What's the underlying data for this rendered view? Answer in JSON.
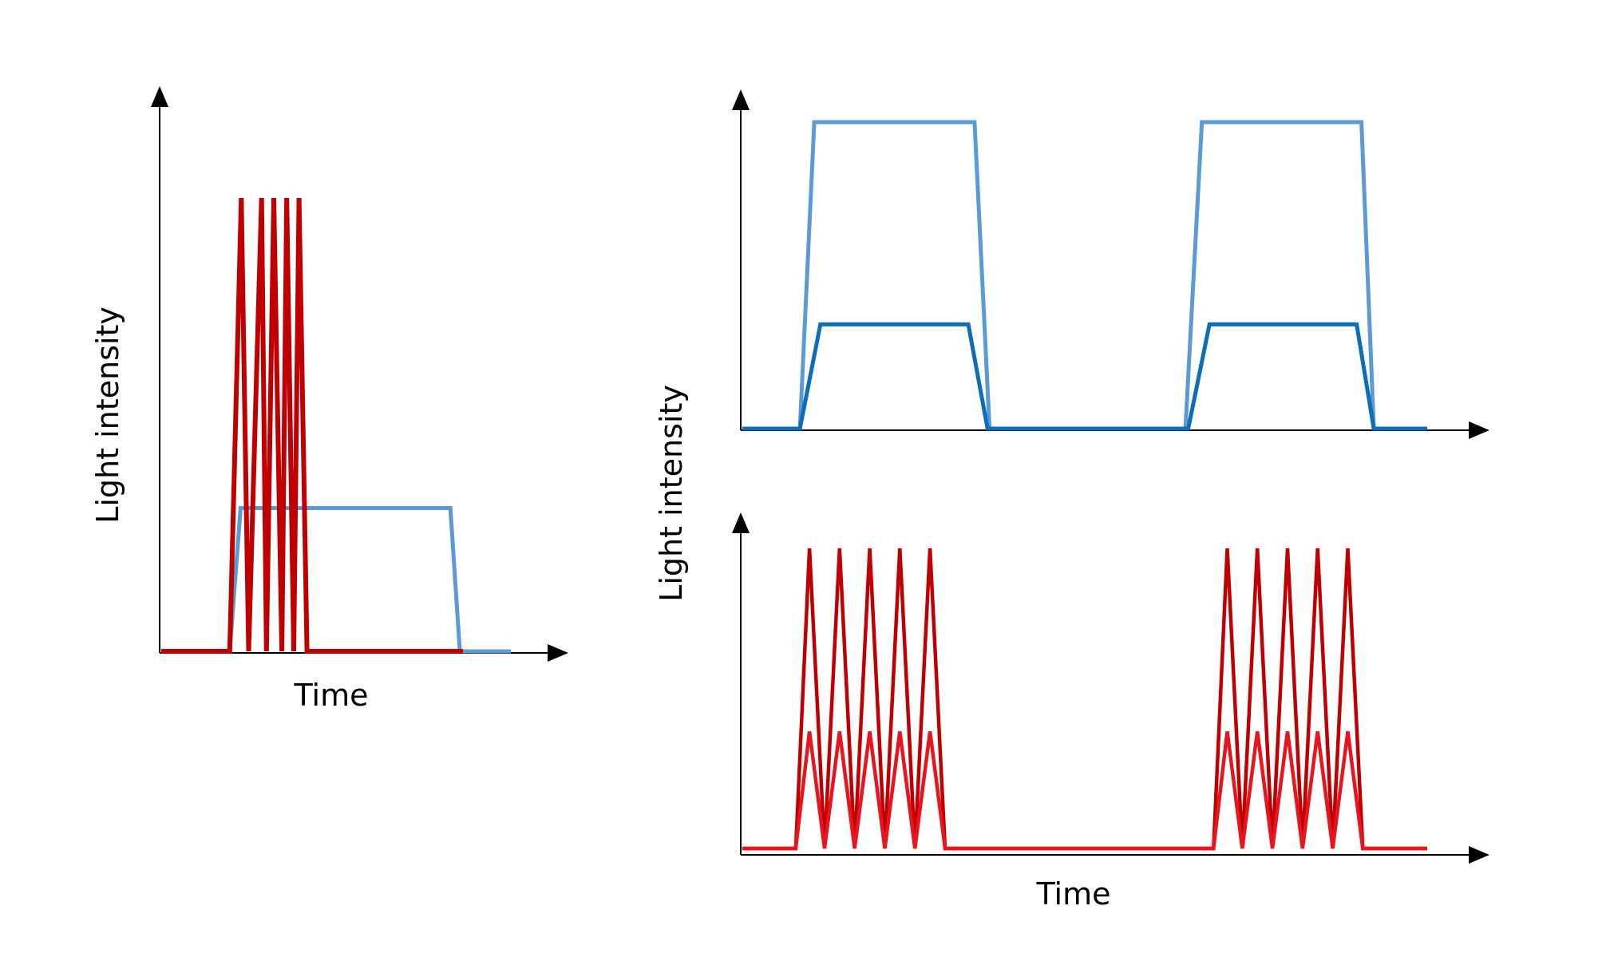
{
  "colors": {
    "axis": "#000000",
    "red_dark": "#c00000",
    "red_light": "#e8141e",
    "blue_light": "#5b9bd5",
    "blue_dark": "#0c6eb8"
  },
  "chart_data": [
    {
      "type": "line",
      "title": "",
      "xlabel": "Time",
      "ylabel": "Light intensity",
      "grid": false,
      "ylim": [
        0,
        1
      ],
      "series": [
        {
          "color": "#5b9bd5",
          "x": [
            0,
            0.196,
            0.227,
            0.827,
            0.854,
            1.0
          ],
          "y": [
            0.0,
            0.0,
            0.316,
            0.316,
            0.0,
            0.0
          ]
        },
        {
          "color": "#c00000",
          "x": [
            0,
            0.196,
            0.229,
            0.25,
            0.287,
            0.301,
            0.322,
            0.345,
            0.359,
            0.379,
            0.394,
            0.417,
            0.863
          ],
          "y": [
            0.0,
            0.0,
            1.0,
            0.0,
            1.0,
            0.0,
            1.0,
            0.0,
            1.0,
            0.0,
            1.0,
            0.0,
            0.0
          ]
        }
      ]
    },
    {
      "type": "line",
      "title": "",
      "xlabel": "",
      "ylabel": "Light intensity",
      "grid": false,
      "ylim": [
        0,
        1
      ],
      "series": [
        {
          "color": "#5b9bd5",
          "x": [
            0,
            0.084,
            0.105,
            0.339,
            0.361,
            0.647,
            0.671,
            0.904,
            0.922,
            1.0
          ],
          "y": [
            0.0,
            0.0,
            1.0,
            1.0,
            0.0,
            0.0,
            1.0,
            1.0,
            0.0,
            0.0
          ]
        },
        {
          "color": "#0c6eb8",
          "x": [
            0,
            0.084,
            0.114,
            0.33,
            0.358,
            0.651,
            0.682,
            0.897,
            0.922,
            1.0
          ],
          "y": [
            0.0,
            0.0,
            0.34,
            0.34,
            0.0,
            0.0,
            0.34,
            0.34,
            0.0,
            0.0
          ]
        }
      ]
    },
    {
      "type": "line",
      "title": "",
      "xlabel": "Time",
      "ylabel": "",
      "grid": false,
      "ylim": [
        0,
        1
      ],
      "series": [
        {
          "color": "#c00000",
          "x": [
            0,
            0.078,
            0.098,
            0.12,
            0.142,
            0.164,
            0.186,
            0.208,
            0.23,
            0.252,
            0.274,
            0.296,
            0.318,
            0.688,
            0.708,
            0.73,
            0.752,
            0.774,
            0.796,
            0.818,
            0.84,
            0.862,
            0.884,
            0.906,
            0.928,
            1.0
          ],
          "y": [
            0.0,
            0.0,
            1.0,
            0.0,
            1.0,
            0.0,
            1.0,
            0.0,
            1.0,
            0.0,
            1.0,
            0.0,
            0.0,
            0.0,
            1.0,
            0.0,
            1.0,
            0.0,
            1.0,
            0.0,
            1.0,
            0.0,
            1.0,
            0.0,
            0.0,
            0.0
          ]
        },
        {
          "color": "#e8141e",
          "x": [
            0,
            0.078,
            0.098,
            0.12,
            0.142,
            0.164,
            0.186,
            0.208,
            0.23,
            0.252,
            0.274,
            0.296,
            0.318,
            0.688,
            0.708,
            0.73,
            0.752,
            0.774,
            0.796,
            0.818,
            0.84,
            0.862,
            0.884,
            0.906,
            0.928,
            1.0
          ],
          "y": [
            0.0,
            0.0,
            0.39,
            0.0,
            0.39,
            0.0,
            0.39,
            0.0,
            0.39,
            0.0,
            0.39,
            0.0,
            0.0,
            0.0,
            0.39,
            0.0,
            0.39,
            0.0,
            0.39,
            0.0,
            0.39,
            0.0,
            0.39,
            0.0,
            0.0,
            0.0
          ]
        }
      ]
    }
  ]
}
